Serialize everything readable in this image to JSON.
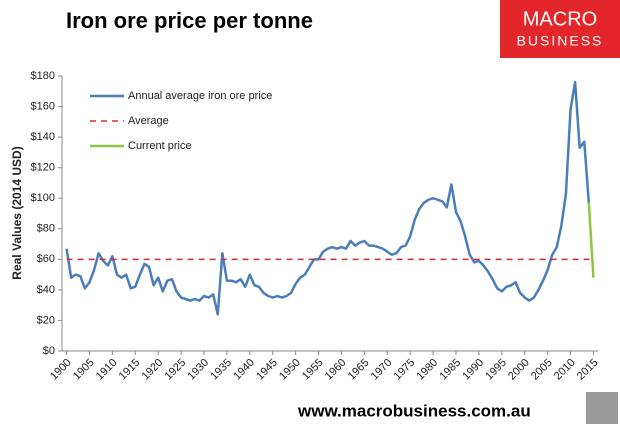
{
  "chart_data": {
    "type": "line",
    "title": "Iron ore price per tonne",
    "y_label": "Real Values (2014 USD)",
    "brand": [
      "MACRO",
      "BUSINESS"
    ],
    "footer": "www.macrobusiness.com.au",
    "xlim": [
      1899,
      2016
    ],
    "ylim": [
      0,
      180
    ],
    "xticks": [
      1900,
      1905,
      1910,
      1915,
      1920,
      1925,
      1930,
      1935,
      1940,
      1945,
      1950,
      1955,
      1960,
      1965,
      1970,
      1975,
      1980,
      1985,
      1990,
      1995,
      2000,
      2005,
      2010,
      2015
    ],
    "yticks": [
      {
        "value": 0,
        "label": "$0"
      },
      {
        "value": 20,
        "label": "$20"
      },
      {
        "value": 40,
        "label": "$40"
      },
      {
        "value": 60,
        "label": "$60"
      },
      {
        "value": 80,
        "label": "$80"
      },
      {
        "value": 100,
        "label": "$100"
      },
      {
        "value": 120,
        "label": "$120"
      },
      {
        "value": 140,
        "label": "$140"
      },
      {
        "value": 160,
        "label": "$160"
      },
      {
        "value": 180,
        "label": "$180"
      }
    ],
    "legend": "upper left",
    "series": [
      {
        "name": "Annual average iron ore price",
        "color": "#4a7ebb",
        "style": "solid",
        "x": [
          1900,
          1901,
          1902,
          1903,
          1904,
          1905,
          1906,
          1907,
          1908,
          1909,
          1910,
          1911,
          1912,
          1913,
          1914,
          1915,
          1916,
          1917,
          1918,
          1919,
          1920,
          1921,
          1922,
          1923,
          1924,
          1925,
          1926,
          1927,
          1928,
          1929,
          1930,
          1931,
          1932,
          1933,
          1934,
          1935,
          1936,
          1937,
          1938,
          1939,
          1940,
          1941,
          1942,
          1943,
          1944,
          1945,
          1946,
          1947,
          1948,
          1949,
          1950,
          1951,
          1952,
          1953,
          1954,
          1955,
          1956,
          1957,
          1958,
          1959,
          1960,
          1961,
          1962,
          1963,
          1964,
          1965,
          1966,
          1967,
          1968,
          1969,
          1970,
          1971,
          1972,
          1973,
          1974,
          1975,
          1976,
          1977,
          1978,
          1979,
          1980,
          1981,
          1982,
          1983,
          1984,
          1985,
          1986,
          1987,
          1988,
          1989,
          1990,
          1991,
          1992,
          1993,
          1994,
          1995,
          1996,
          1997,
          1998,
          1999,
          2000,
          2001,
          2002,
          2003,
          2004,
          2005,
          2006,
          2007,
          2008,
          2009,
          2010,
          2011,
          2012,
          2013,
          2014
        ],
        "values": [
          67,
          48,
          50,
          49,
          41,
          45,
          53,
          64,
          59,
          56,
          62,
          50,
          48,
          50,
          41,
          42,
          50,
          57,
          55,
          43,
          48,
          39,
          46,
          47,
          39,
          35,
          34,
          33,
          34,
          33,
          36,
          35,
          37,
          24,
          64,
          46,
          46,
          45,
          47,
          42,
          50,
          43,
          42,
          38,
          36,
          35,
          36,
          35,
          36,
          38,
          44,
          48,
          50,
          55,
          60,
          60,
          65,
          67,
          68,
          67,
          68,
          67,
          72,
          69,
          71,
          72,
          69,
          69,
          68,
          67,
          65,
          63,
          64,
          68,
          69,
          75,
          86,
          93,
          97,
          99,
          100,
          99,
          98,
          94,
          109,
          91,
          85,
          75,
          63,
          58,
          59,
          56,
          52,
          47,
          41,
          39,
          42,
          43,
          45,
          38,
          35,
          33,
          35,
          40,
          46,
          53,
          63,
          68,
          82,
          103,
          158,
          176,
          133,
          137,
          97
        ]
      },
      {
        "name": "Average",
        "color": "#d03030",
        "style": "dashed",
        "x": [
          1900,
          2015
        ],
        "values": [
          60,
          60
        ]
      },
      {
        "name": "Current price",
        "color": "#8dc63f",
        "style": "solid",
        "x": [
          2014,
          2015
        ],
        "values": [
          97,
          48
        ]
      }
    ]
  }
}
